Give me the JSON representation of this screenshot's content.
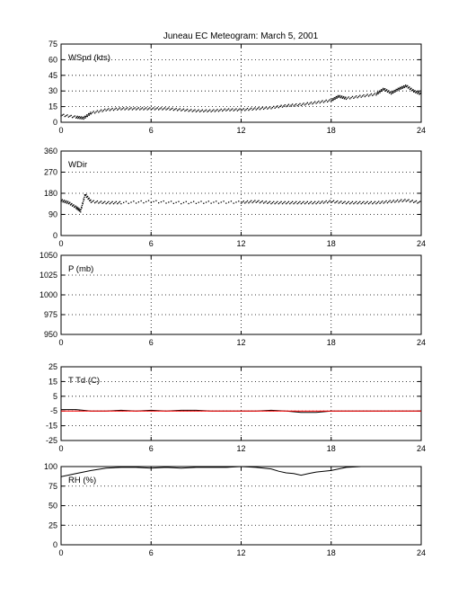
{
  "title": "Juneau EC Meteogram:      March  5, 2001",
  "colors": {
    "axis": "#000000",
    "grid": "#000000",
    "temperature": "#000000",
    "dewpoint": "#ff0000",
    "data": "#000000"
  },
  "chart_data": [
    {
      "type": "scatter",
      "label": "WSpd (kts)",
      "xlim": [
        0,
        24
      ],
      "ylim": [
        0,
        75
      ],
      "xticks": [
        "0",
        "6",
        "12",
        "18",
        "24"
      ],
      "yticks": [
        "0",
        "15",
        "30",
        "45",
        "60",
        "75"
      ],
      "grid": true,
      "series": [
        {
          "x": [
            0,
            1,
            1.5,
            2,
            3,
            4,
            5,
            6,
            7,
            8,
            9,
            10,
            11,
            12,
            13,
            14,
            15,
            16,
            17,
            18,
            18.5,
            19,
            20,
            21,
            21.5,
            22,
            22.5,
            23,
            23.5,
            24
          ],
          "values": [
            7,
            5,
            4,
            9,
            12,
            13,
            13,
            13,
            13,
            12,
            11,
            11,
            12,
            12,
            13,
            14,
            16,
            17,
            19,
            21,
            25,
            23,
            25,
            27,
            32,
            28,
            32,
            35,
            30,
            27
          ]
        }
      ]
    },
    {
      "type": "scatter",
      "label": "WDir",
      "xlim": [
        0,
        24
      ],
      "ylim": [
        0,
        360
      ],
      "xticks": [
        "0",
        "6",
        "12",
        "18",
        "24"
      ],
      "yticks": [
        "0",
        "90",
        "180",
        "270",
        "360"
      ],
      "grid": true,
      "series": [
        {
          "x": [
            0,
            0.5,
            1,
            1.3,
            1.6,
            2,
            3,
            4,
            6,
            8,
            10,
            12,
            13,
            14,
            15,
            16,
            17,
            18,
            19,
            20,
            21,
            22,
            23,
            24
          ],
          "values": [
            150,
            140,
            120,
            105,
            175,
            145,
            140,
            140,
            145,
            140,
            142,
            142,
            145,
            140,
            140,
            140,
            140,
            145,
            140,
            140,
            140,
            145,
            150,
            140
          ]
        }
      ]
    },
    {
      "type": "line",
      "label": "P (mb)",
      "xlim": [
        0,
        24
      ],
      "ylim": [
        950,
        1050
      ],
      "xticks": [
        "0",
        "6",
        "12",
        "18",
        "24"
      ],
      "yticks": [
        "950",
        "975",
        "1000",
        "1025",
        "1050"
      ],
      "grid": true,
      "series": []
    },
    {
      "type": "line",
      "label": "T Td (C)",
      "xlim": [
        0,
        24
      ],
      "ylim": [
        -25,
        25
      ],
      "xticks": [
        "0",
        "6",
        "12",
        "18",
        "24"
      ],
      "yticks": [
        "-25",
        "-15",
        "-5",
        "5",
        "15",
        "25"
      ],
      "grid": true,
      "series": [
        {
          "x": [
            0,
            1,
            2,
            3,
            4,
            5,
            6,
            7,
            8,
            9,
            10,
            11,
            12,
            13,
            14,
            15,
            16,
            17,
            18,
            19,
            20,
            21,
            22,
            23,
            24
          ],
          "values": [
            -4,
            -4,
            -5,
            -5,
            -4.5,
            -5,
            -4.5,
            -5,
            -4.5,
            -4.5,
            -5,
            -5,
            -5,
            -5,
            -4.5,
            -5,
            -6,
            -6,
            -5,
            -5,
            -5,
            -5,
            -5,
            -5,
            -5
          ]
        },
        {
          "x": [
            0,
            2,
            4,
            6,
            8,
            10,
            12,
            14,
            16,
            18,
            20,
            22,
            24
          ],
          "values": [
            -5,
            -5,
            -5,
            -5,
            -5,
            -5,
            -5,
            -5,
            -5,
            -5,
            -5,
            -5,
            -5
          ]
        }
      ]
    },
    {
      "type": "line",
      "label": "RH (%)",
      "xlim": [
        0,
        24
      ],
      "ylim": [
        0,
        100
      ],
      "xticks": [
        "0",
        "6",
        "12",
        "18",
        "24"
      ],
      "yticks": [
        "0",
        "25",
        "50",
        "75",
        "100"
      ],
      "grid": true,
      "series": [
        {
          "x": [
            0,
            1,
            2,
            3,
            4,
            5,
            6,
            7,
            8,
            9,
            10,
            11,
            12,
            13,
            14,
            14.5,
            15,
            15.5,
            16,
            16.5,
            17,
            18,
            18.5,
            19,
            20,
            21,
            22,
            23,
            24
          ],
          "values": [
            87,
            91,
            95,
            98,
            99,
            99,
            98,
            99,
            98,
            99,
            99,
            99,
            100,
            99,
            97,
            94,
            92,
            91,
            89,
            91,
            93,
            95,
            97,
            99,
            100,
            100,
            100,
            100,
            100
          ]
        }
      ]
    }
  ]
}
